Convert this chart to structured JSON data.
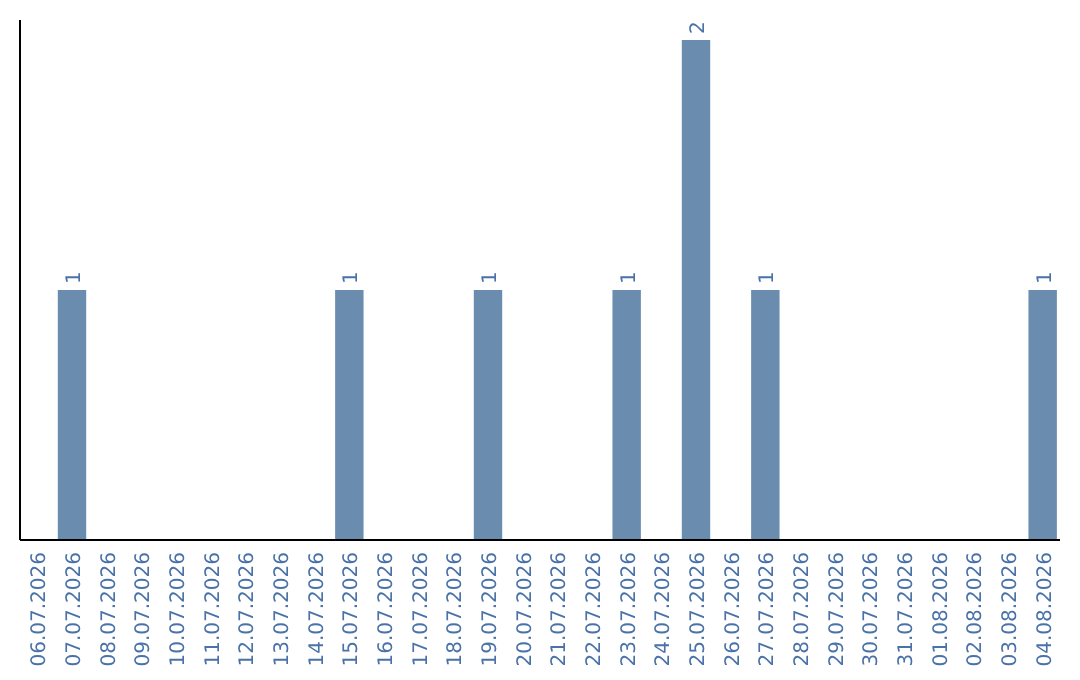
{
  "chart_data": {
    "type": "bar",
    "categories": [
      "06.07.2026",
      "07.07.2026",
      "08.07.2026",
      "09.07.2026",
      "10.07.2026",
      "11.07.2026",
      "12.07.2026",
      "13.07.2026",
      "14.07.2026",
      "15.07.2026",
      "16.07.2026",
      "17.07.2026",
      "18.07.2026",
      "19.07.2026",
      "20.07.2026",
      "21.07.2026",
      "22.07.2026",
      "23.07.2026",
      "24.07.2026",
      "25.07.2026",
      "26.07.2026",
      "27.07.2026",
      "28.07.2026",
      "29.07.2026",
      "30.07.2026",
      "31.07.2026",
      "01.08.2026",
      "02.08.2026",
      "03.08.2026",
      "04.08.2026"
    ],
    "values": [
      0,
      1,
      0,
      0,
      0,
      0,
      0,
      0,
      0,
      1,
      0,
      0,
      0,
      1,
      0,
      0,
      0,
      1,
      0,
      2,
      0,
      1,
      0,
      0,
      0,
      0,
      0,
      0,
      0,
      1
    ],
    "value_labels": [
      null,
      "1",
      null,
      null,
      null,
      null,
      null,
      null,
      null,
      "1",
      null,
      null,
      null,
      "1",
      null,
      null,
      null,
      "1",
      null,
      "2",
      null,
      "1",
      null,
      null,
      null,
      null,
      null,
      null,
      null,
      "1"
    ],
    "color": "#6a8caf",
    "tick_labels": "x"
  }
}
